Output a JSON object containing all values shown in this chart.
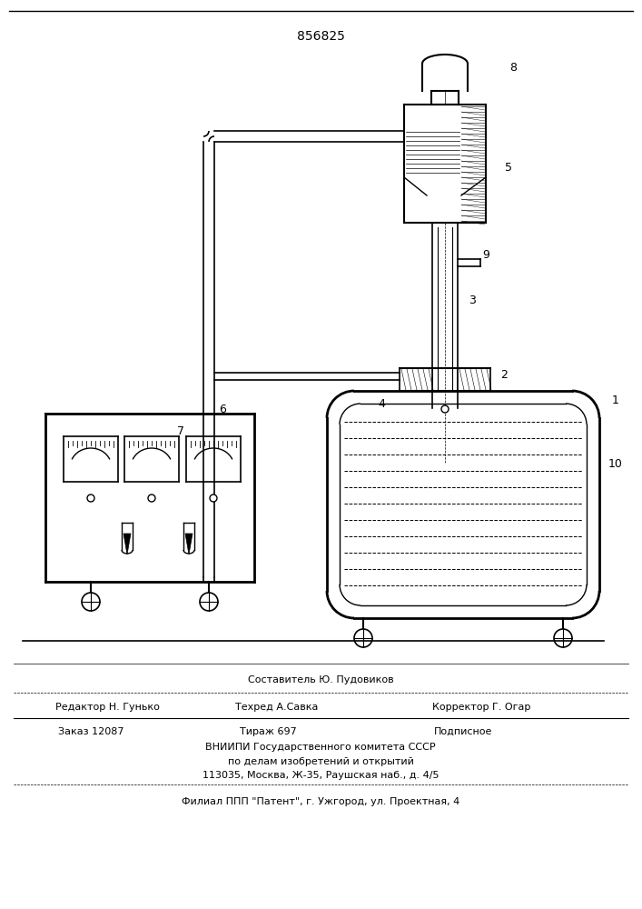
{
  "patent_number": "856825",
  "footer_line1": "Составитель Ю. Пудовиков",
  "footer_line2a": "Редактор Н. Гунько",
  "footer_line2b": "Техред А.Савка",
  "footer_line2c": "Корректор Г. Огар",
  "footer_line3a": "Заказ 12087",
  "footer_line3b": "Тираж 697",
  "footer_line3c": "Подписное",
  "footer_line4": "ВНИИПИ Государственного комитета СССР",
  "footer_line5": "по делам изобретений и открытий",
  "footer_line6": "113035, Москва, Ж-35, Раушская наб., д. 4/5",
  "footer_line7": "Филиал ППП \"Патент\", г. Ужгород, ул. Проектная, 4",
  "bg_color": "#ffffff",
  "line_color": "#000000"
}
